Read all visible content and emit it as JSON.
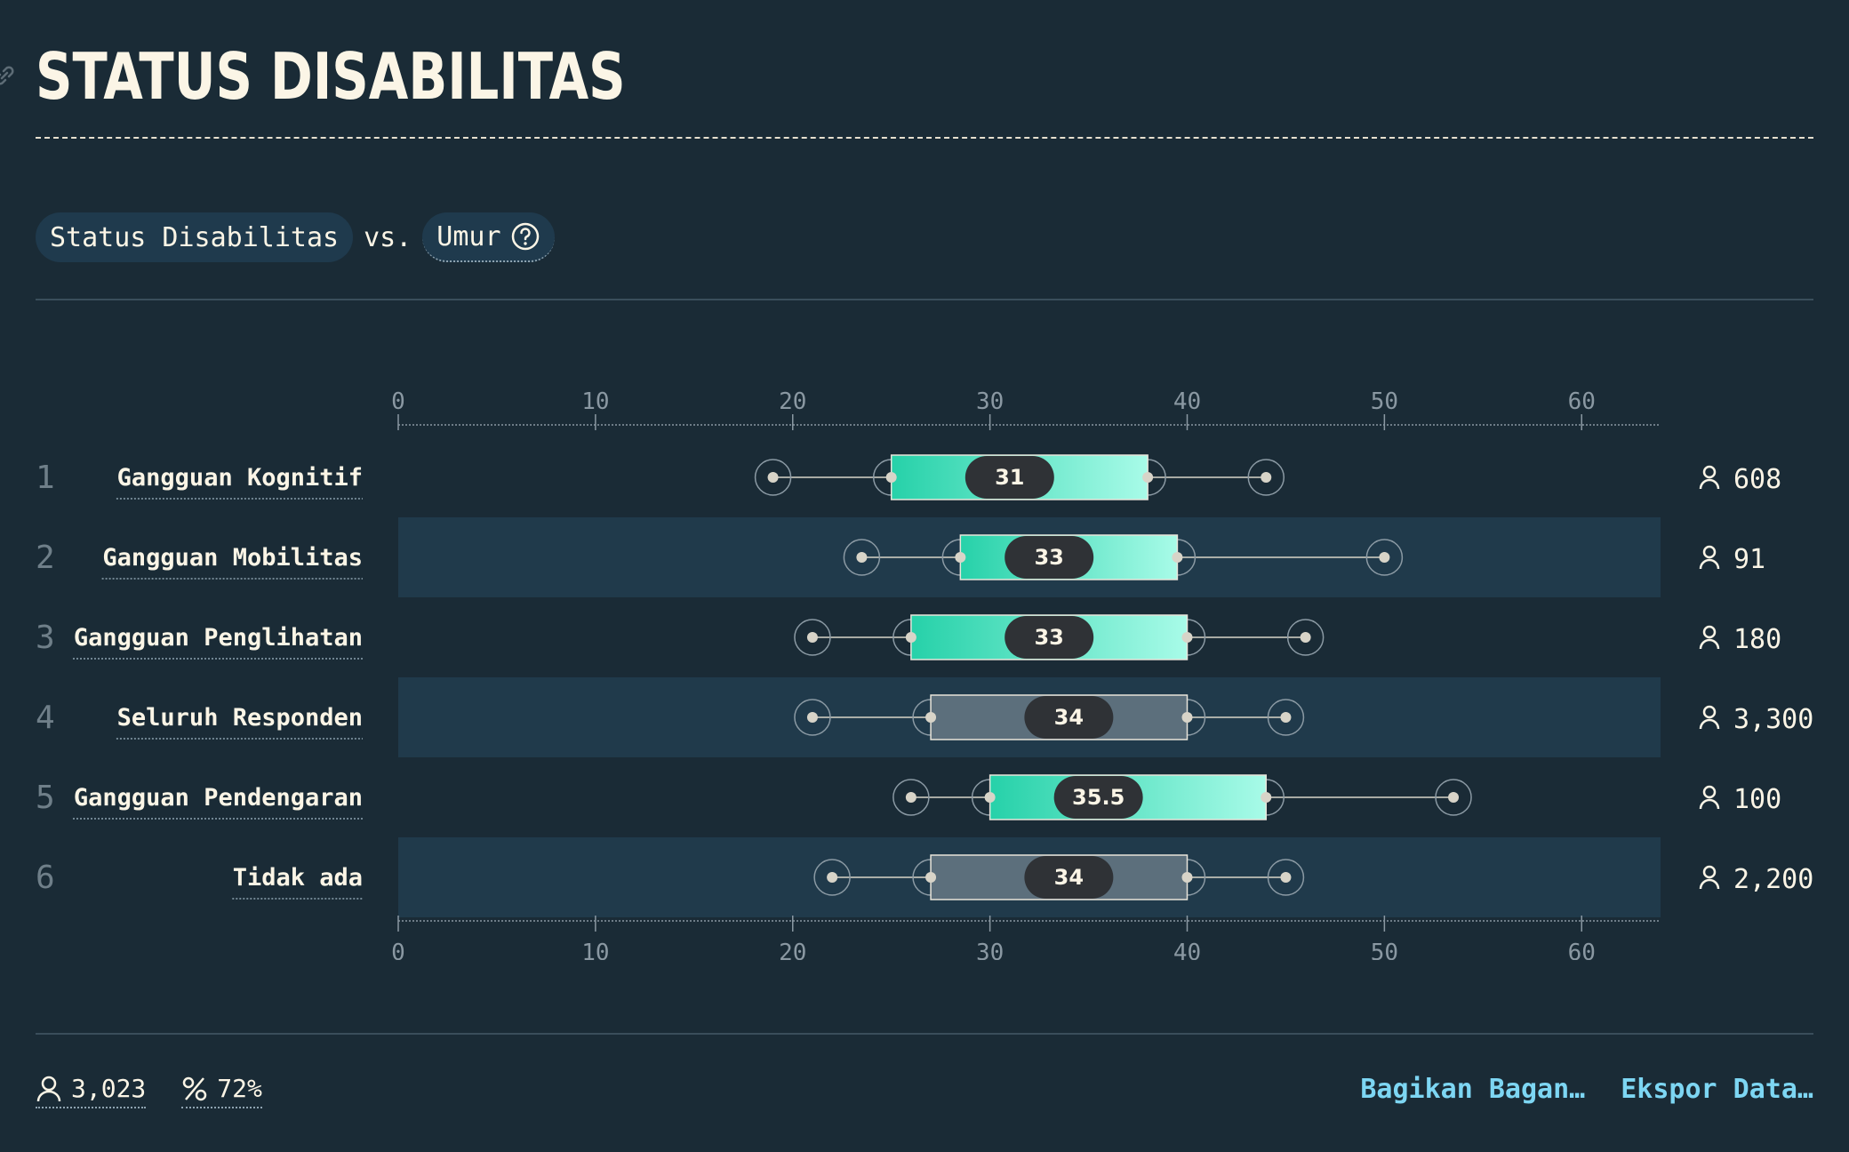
{
  "page": {
    "title": "STATUS DISABILITAS"
  },
  "selector": {
    "primary": "Status Disabilitas",
    "vs": "vs.",
    "secondary": "Umur"
  },
  "chart_data": {
    "type": "boxplot",
    "axis": {
      "min": 0,
      "max": 64,
      "ticks": [
        0,
        10,
        20,
        30,
        40,
        50,
        60
      ]
    },
    "rows": [
      {
        "rank": "1",
        "label": "Gangguan Kognitif",
        "min": 19,
        "q1": 25,
        "median": 31,
        "q3": 38,
        "max": 44,
        "median_label": "31",
        "count": "608",
        "highlight": true
      },
      {
        "rank": "2",
        "label": "Gangguan Mobilitas",
        "min": 23.5,
        "q1": 28.5,
        "median": 33,
        "q3": 39.5,
        "max": 50,
        "median_label": "33",
        "count": "91",
        "highlight": true
      },
      {
        "rank": "3",
        "label": "Gangguan Penglihatan",
        "min": 21,
        "q1": 26,
        "median": 33,
        "q3": 40,
        "max": 46,
        "median_label": "33",
        "count": "180",
        "highlight": true
      },
      {
        "rank": "4",
        "label": "Seluruh Responden",
        "min": 21,
        "q1": 27,
        "median": 34,
        "q3": 40,
        "max": 45,
        "median_label": "34",
        "count": "3,300",
        "highlight": false
      },
      {
        "rank": "5",
        "label": "Gangguan Pendengaran",
        "min": 26,
        "q1": 30,
        "median": 35.5,
        "q3": 44,
        "max": 53.5,
        "median_label": "35.5",
        "count": "100",
        "highlight": true
      },
      {
        "rank": "6",
        "label": "Tidak ada",
        "min": 22,
        "q1": 27,
        "median": 34,
        "q3": 40,
        "max": 45,
        "median_label": "34",
        "count": "2,200",
        "highlight": false
      }
    ],
    "colors": {
      "highlight_start": "#26d1a9",
      "highlight_end": "#a8fbe8",
      "neutral_box": "#5c6f7c",
      "stripe": "#203a4b"
    }
  },
  "footer": {
    "respondents": "3,023",
    "percent": "72%",
    "share_label": "Bagikan Bagan…",
    "export_label": "Ekspor Data…"
  }
}
